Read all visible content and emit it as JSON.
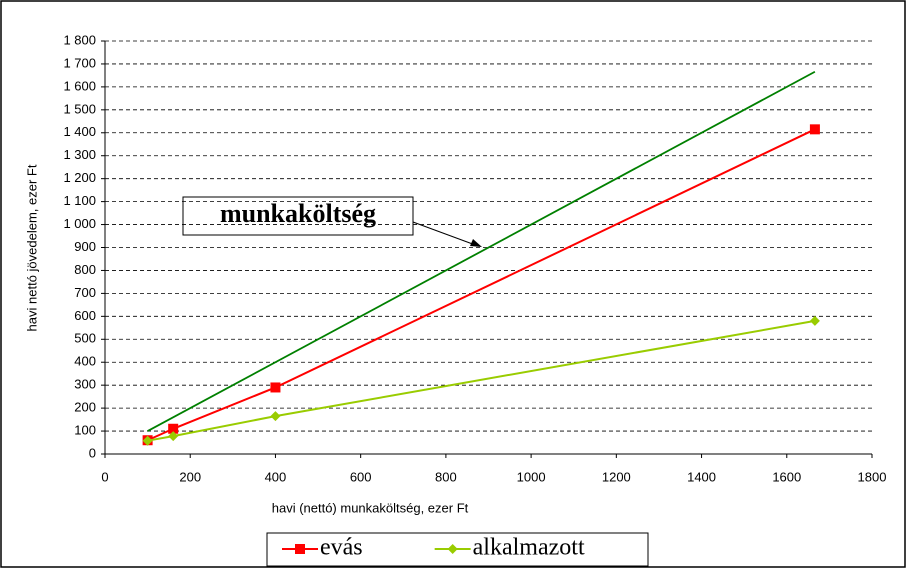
{
  "chart_data": {
    "type": "line",
    "x_label": "havi (nettó) munkaköltség, ezer Ft",
    "y_label": "havi nettó jövedelem, ezer Ft",
    "annotation": "munkaköltség",
    "xlim": [
      0,
      1800
    ],
    "xticks": [
      0,
      200,
      400,
      600,
      800,
      1000,
      1200,
      1400,
      1600,
      1800
    ],
    "ylim": [
      0,
      1800
    ],
    "yticks": [
      0,
      100,
      200,
      300,
      400,
      500,
      600,
      700,
      800,
      900,
      {
        "value": 1000,
        "label": "1 000"
      },
      {
        "value": 1100,
        "label": "1 100"
      },
      {
        "value": 1200,
        "label": "1 200"
      },
      {
        "value": 1300,
        "label": "1 300"
      },
      {
        "value": 1400,
        "label": "1 400"
      },
      {
        "value": 1500,
        "label": "1 500"
      },
      {
        "value": 1600,
        "label": "1 600"
      },
      {
        "value": 1700,
        "label": "1 700"
      },
      {
        "value": 1800,
        "label": "1 800"
      }
    ],
    "grid": true,
    "series": [
      {
        "name": "evás",
        "color": "#ff0000",
        "marker": "square",
        "x": [
          100,
          160,
          400,
          1666
        ],
        "values": [
          60,
          110,
          290,
          1415
        ]
      },
      {
        "name": "alkalmazott",
        "color": "#99cc00",
        "marker": "diamond",
        "x": [
          100,
          160,
          400,
          1666
        ],
        "values": [
          58,
          78,
          165,
          580
        ]
      },
      {
        "color": "#008000",
        "x": [
          100,
          1666
        ],
        "values": [
          100,
          1666
        ]
      }
    ]
  }
}
